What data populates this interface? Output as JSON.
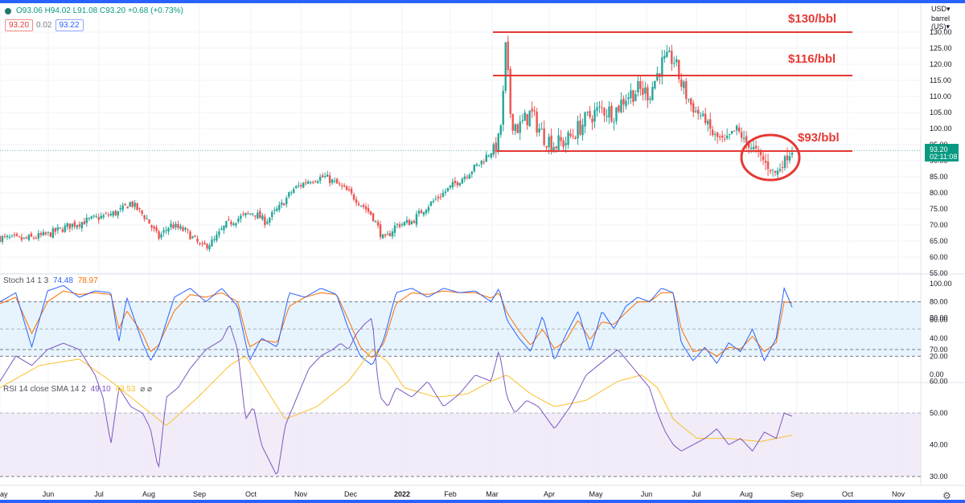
{
  "header": {
    "ohlc": "O93.06 H94.02 L91.08 C93.20 +0.68 (+0.73%)",
    "sell_price": "93.20",
    "spread": "0.02",
    "buy_price": "93.22",
    "currency": "USD▾",
    "unit": "barrel (US)▾"
  },
  "annotations": {
    "level_130": "$130/bbl",
    "level_116": "$116/bbl",
    "level_93": "$93/bbl"
  },
  "stoch": {
    "label": "Stoch 14 1 3",
    "k": "74.48",
    "d": "78.97"
  },
  "rsi": {
    "label": "RSI 14 close SMA 14 2",
    "rsi": "49.10",
    "sma": "43.53",
    "extra": "⌀ ⌀"
  },
  "price_axis": {
    "ticks": [
      "130.00",
      "125.00",
      "120.00",
      "115.00",
      "110.00",
      "105.00",
      "100.00",
      "95.00",
      "90.00",
      "85.00",
      "80.00",
      "75.00",
      "70.00",
      "65.00",
      "60.00",
      "55.00"
    ],
    "last_price": "93.20",
    "countdown": "02:11:08"
  },
  "stoch_axis": {
    "ticks": [
      "100.00",
      "80.00",
      "60.00",
      "40.00",
      "20.00",
      "0.00"
    ]
  },
  "rsi_axis": {
    "ticks": [
      "80.00",
      "70.00",
      "60.00",
      "50.00",
      "40.00",
      "30.00"
    ]
  },
  "time_axis": {
    "labels": [
      "ay",
      "Jun",
      "Jul",
      "Aug",
      "Sep",
      "Oct",
      "Nov",
      "Dec",
      "2022",
      "Feb",
      "Mar",
      "Apr",
      "May",
      "Jun",
      "Jul",
      "Aug",
      "Sep",
      "Oct",
      "Nov"
    ]
  },
  "chart_data": {
    "type": "candlestick",
    "instrument_unit": "barrel (US)",
    "currency": "USD",
    "price_range": [
      55,
      132
    ],
    "horizontal_levels": [
      130,
      116.5,
      93
    ],
    "price_path": [
      [
        0,
        66
      ],
      [
        6,
        65.5
      ],
      [
        12,
        67
      ],
      [
        18,
        70
      ],
      [
        24,
        72
      ],
      [
        30,
        74
      ],
      [
        33,
        77
      ],
      [
        37,
        72
      ],
      [
        40,
        66
      ],
      [
        43,
        70
      ],
      [
        47,
        68
      ],
      [
        51,
        63
      ],
      [
        54,
        65
      ],
      [
        57,
        70
      ],
      [
        60,
        72
      ],
      [
        64,
        74
      ],
      [
        67,
        71
      ],
      [
        71,
        76
      ],
      [
        74,
        81
      ],
      [
        78,
        84
      ],
      [
        82,
        85
      ],
      [
        86,
        82
      ],
      [
        90,
        78
      ],
      [
        94,
        73
      ],
      [
        97,
        65
      ],
      [
        100,
        70
      ],
      [
        104,
        71
      ],
      [
        107,
        75
      ],
      [
        111,
        79
      ],
      [
        114,
        82
      ],
      [
        118,
        86
      ],
      [
        121,
        89
      ],
      [
        124,
        93
      ],
      [
        126,
        96
      ],
      [
        127,
        108
      ],
      [
        127.5,
        127
      ],
      [
        128,
        120
      ],
      [
        129,
        103
      ],
      [
        131,
        100
      ],
      [
        134,
        105
      ],
      [
        137,
        98
      ],
      [
        140,
        95
      ],
      [
        143,
        96
      ],
      [
        146,
        100
      ],
      [
        149,
        104
      ],
      [
        152,
        106
      ],
      [
        155,
        105
      ],
      [
        158,
        110
      ],
      [
        161,
        112
      ],
      [
        164,
        111
      ],
      [
        167,
        120
      ],
      [
        170,
        122
      ],
      [
        172,
        114
      ],
      [
        175,
        106
      ],
      [
        178,
        103
      ],
      [
        180,
        98
      ],
      [
        183,
        96
      ],
      [
        186,
        100
      ],
      [
        188,
        96
      ],
      [
        191,
        93
      ],
      [
        194,
        88
      ],
      [
        196,
        86
      ],
      [
        198,
        90
      ],
      [
        200,
        93.2
      ]
    ],
    "stoch_path": [
      [
        0,
        80
      ],
      [
        4,
        90
      ],
      [
        8,
        30
      ],
      [
        12,
        92
      ],
      [
        16,
        98
      ],
      [
        20,
        85
      ],
      [
        24,
        92
      ],
      [
        28,
        90
      ],
      [
        30,
        35
      ],
      [
        32,
        85
      ],
      [
        36,
        35
      ],
      [
        38,
        15
      ],
      [
        40,
        30
      ],
      [
        44,
        85
      ],
      [
        48,
        95
      ],
      [
        52,
        80
      ],
      [
        56,
        95
      ],
      [
        60,
        75
      ],
      [
        63,
        15
      ],
      [
        66,
        40
      ],
      [
        70,
        30
      ],
      [
        73,
        90
      ],
      [
        77,
        85
      ],
      [
        81,
        95
      ],
      [
        85,
        88
      ],
      [
        88,
        50
      ],
      [
        91,
        20
      ],
      [
        94,
        10
      ],
      [
        97,
        40
      ],
      [
        100,
        90
      ],
      [
        104,
        95
      ],
      [
        108,
        85
      ],
      [
        112,
        95
      ],
      [
        116,
        90
      ],
      [
        120,
        92
      ],
      [
        124,
        80
      ],
      [
        126,
        95
      ],
      [
        128,
        60
      ],
      [
        131,
        40
      ],
      [
        134,
        25
      ],
      [
        137,
        65
      ],
      [
        140,
        15
      ],
      [
        143,
        45
      ],
      [
        146,
        70
      ],
      [
        149,
        25
      ],
      [
        152,
        70
      ],
      [
        155,
        50
      ],
      [
        158,
        75
      ],
      [
        161,
        85
      ],
      [
        164,
        80
      ],
      [
        167,
        95
      ],
      [
        170,
        90
      ],
      [
        172,
        35
      ],
      [
        175,
        15
      ],
      [
        178,
        30
      ],
      [
        181,
        12
      ],
      [
        184,
        35
      ],
      [
        187,
        25
      ],
      [
        190,
        50
      ],
      [
        193,
        15
      ],
      [
        196,
        40
      ],
      [
        198,
        95
      ],
      [
        200,
        74
      ]
    ],
    "stoch_d_path": [
      [
        0,
        78
      ],
      [
        4,
        85
      ],
      [
        8,
        45
      ],
      [
        12,
        80
      ],
      [
        16,
        92
      ],
      [
        20,
        88
      ],
      [
        24,
        90
      ],
      [
        28,
        88
      ],
      [
        30,
        50
      ],
      [
        32,
        70
      ],
      [
        36,
        45
      ],
      [
        38,
        25
      ],
      [
        40,
        32
      ],
      [
        44,
        70
      ],
      [
        48,
        88
      ],
      [
        52,
        85
      ],
      [
        56,
        90
      ],
      [
        60,
        80
      ],
      [
        63,
        30
      ],
      [
        66,
        38
      ],
      [
        70,
        35
      ],
      [
        73,
        75
      ],
      [
        77,
        85
      ],
      [
        81,
        90
      ],
      [
        85,
        88
      ],
      [
        88,
        60
      ],
      [
        91,
        30
      ],
      [
        94,
        18
      ],
      [
        97,
        35
      ],
      [
        100,
        78
      ],
      [
        104,
        90
      ],
      [
        108,
        88
      ],
      [
        112,
        92
      ],
      [
        116,
        90
      ],
      [
        120,
        90
      ],
      [
        124,
        84
      ],
      [
        126,
        90
      ],
      [
        128,
        68
      ],
      [
        131,
        48
      ],
      [
        134,
        32
      ],
      [
        137,
        50
      ],
      [
        140,
        28
      ],
      [
        143,
        38
      ],
      [
        146,
        60
      ],
      [
        149,
        38
      ],
      [
        152,
        58
      ],
      [
        155,
        55
      ],
      [
        158,
        68
      ],
      [
        161,
        80
      ],
      [
        164,
        80
      ],
      [
        167,
        90
      ],
      [
        170,
        90
      ],
      [
        172,
        50
      ],
      [
        175,
        25
      ],
      [
        178,
        28
      ],
      [
        181,
        20
      ],
      [
        184,
        30
      ],
      [
        187,
        28
      ],
      [
        190,
        42
      ],
      [
        193,
        25
      ],
      [
        196,
        35
      ],
      [
        198,
        80
      ],
      [
        200,
        79
      ]
    ],
    "rsi_path": [
      [
        0,
        60
      ],
      [
        4,
        68
      ],
      [
        8,
        65
      ],
      [
        12,
        70
      ],
      [
        16,
        72
      ],
      [
        20,
        70
      ],
      [
        22,
        66
      ],
      [
        24,
        62
      ],
      [
        26,
        55
      ],
      [
        28,
        40
      ],
      [
        30,
        58
      ],
      [
        33,
        52
      ],
      [
        36,
        50
      ],
      [
        38,
        45
      ],
      [
        40,
        32
      ],
      [
        42,
        55
      ],
      [
        45,
        58
      ],
      [
        48,
        64
      ],
      [
        52,
        70
      ],
      [
        56,
        73
      ],
      [
        58,
        78
      ],
      [
        60,
        70
      ],
      [
        62,
        48
      ],
      [
        64,
        52
      ],
      [
        66,
        40
      ],
      [
        68,
        35
      ],
      [
        70,
        30
      ],
      [
        72,
        46
      ],
      [
        75,
        55
      ],
      [
        78,
        64
      ],
      [
        81,
        68
      ],
      [
        84,
        70
      ],
      [
        86,
        72
      ],
      [
        88,
        70
      ],
      [
        90,
        75
      ],
      [
        92,
        78
      ],
      [
        94,
        80
      ],
      [
        95,
        65
      ],
      [
        96,
        55
      ],
      [
        98,
        52
      ],
      [
        100,
        58
      ],
      [
        104,
        55
      ],
      [
        108,
        60
      ],
      [
        112,
        52
      ],
      [
        116,
        56
      ],
      [
        120,
        62
      ],
      [
        124,
        60
      ],
      [
        126,
        70
      ],
      [
        128,
        55
      ],
      [
        130,
        50
      ],
      [
        133,
        54
      ],
      [
        136,
        52
      ],
      [
        140,
        45
      ],
      [
        144,
        52
      ],
      [
        148,
        62
      ],
      [
        152,
        66
      ],
      [
        156,
        70
      ],
      [
        160,
        64
      ],
      [
        164,
        58
      ],
      [
        166,
        50
      ],
      [
        168,
        44
      ],
      [
        170,
        40
      ],
      [
        172,
        38
      ],
      [
        175,
        40
      ],
      [
        178,
        42
      ],
      [
        181,
        45
      ],
      [
        184,
        40
      ],
      [
        187,
        42
      ],
      [
        190,
        38
      ],
      [
        193,
        44
      ],
      [
        196,
        42
      ],
      [
        198,
        50
      ],
      [
        200,
        49
      ]
    ],
    "rsi_sma_path": [
      [
        0,
        58
      ],
      [
        10,
        65
      ],
      [
        20,
        67
      ],
      [
        28,
        60
      ],
      [
        36,
        52
      ],
      [
        42,
        46
      ],
      [
        50,
        55
      ],
      [
        58,
        65
      ],
      [
        62,
        68
      ],
      [
        66,
        60
      ],
      [
        72,
        48
      ],
      [
        80,
        52
      ],
      [
        88,
        60
      ],
      [
        94,
        70
      ],
      [
        98,
        66
      ],
      [
        102,
        58
      ],
      [
        110,
        55
      ],
      [
        118,
        56
      ],
      [
        124,
        60
      ],
      [
        128,
        62
      ],
      [
        134,
        56
      ],
      [
        140,
        52
      ],
      [
        148,
        54
      ],
      [
        156,
        60
      ],
      [
        162,
        62
      ],
      [
        166,
        58
      ],
      [
        170,
        48
      ],
      [
        176,
        42
      ],
      [
        184,
        42
      ],
      [
        192,
        41
      ],
      [
        200,
        43
      ]
    ]
  }
}
